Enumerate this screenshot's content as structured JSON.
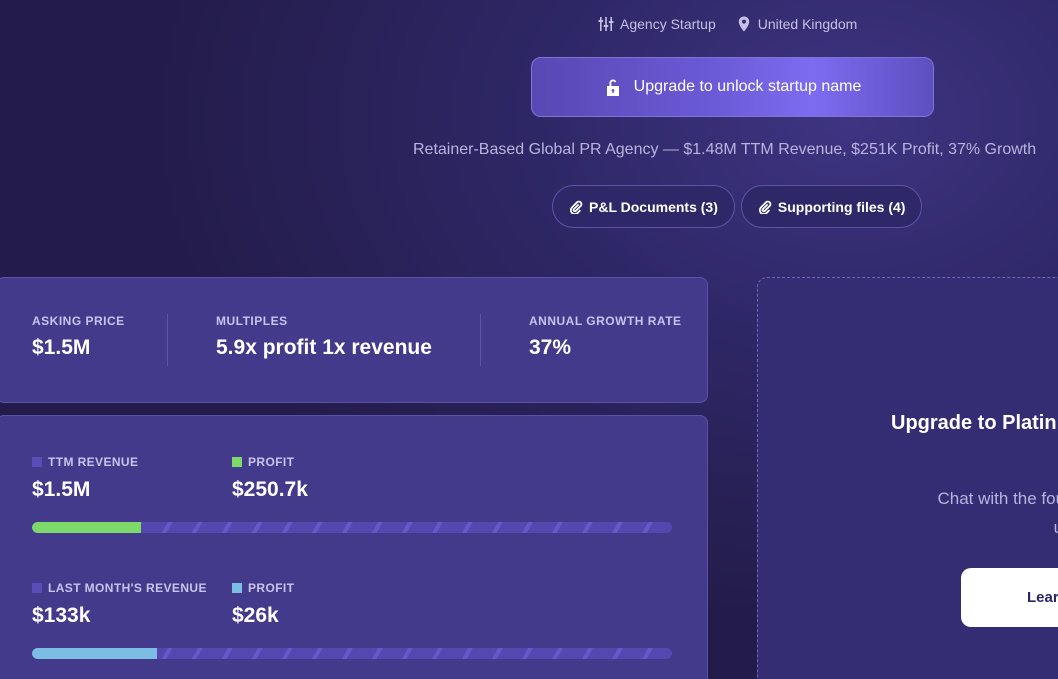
{
  "header": {
    "category": "Agency Startup",
    "location": "United Kingdom",
    "unlock_label": "Upgrade to unlock startup name",
    "tagline": "Retainer-Based Global PR Agency — $1.48M TTM Revenue, $251K Profit, 37% Growth",
    "chips": [
      {
        "label": "P&L Documents (3)"
      },
      {
        "label": "Supporting files (4)"
      }
    ]
  },
  "stats": [
    {
      "label": "ASKING PRICE",
      "value": "$1.5M"
    },
    {
      "label": "MULTIPLES",
      "value": "5.9x profit 1x revenue"
    },
    {
      "label": "ANNUAL GROWTH RATE",
      "value": "37%"
    }
  ],
  "revenue": {
    "ttm": {
      "revenue_label": "TTM REVENUE",
      "revenue_value": "$1.5M",
      "profit_label": "PROFIT",
      "profit_value": "$250.7k",
      "profit_fraction": 0.17
    },
    "last_month": {
      "revenue_label": "LAST MONTH'S REVENUE",
      "revenue_value": "$133k",
      "profit_label": "PROFIT",
      "profit_value": "$26k",
      "profit_fraction": 0.195
    }
  },
  "upgrade": {
    "title": "Upgrade to Platin",
    "desc_line1": "Chat with the foun",
    "desc_line2": "unava",
    "button_label": "Lear"
  },
  "colors": {
    "revenue_square": "#5a4db8",
    "ttm_profit": "#7ed96b",
    "month_profit": "#7bbde3"
  },
  "icons": {
    "category": "sliders-icon",
    "location": "map-pin-icon",
    "lock": "unlock-icon",
    "attachment": "paperclip-icon"
  }
}
